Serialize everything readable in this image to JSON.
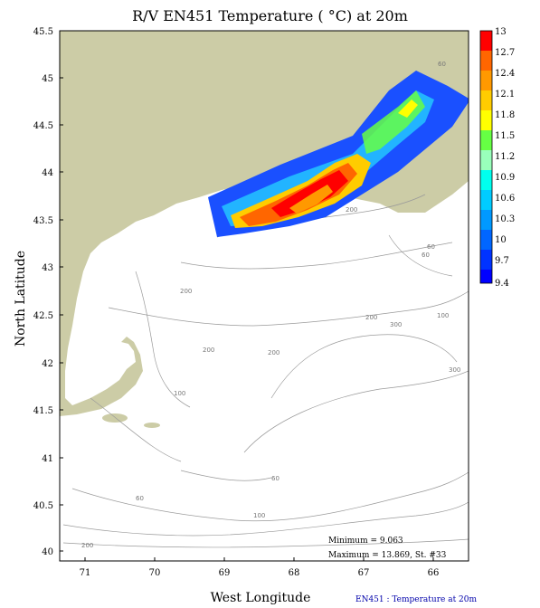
{
  "title": "R/V EN451 Temperature ( °C) at 20m",
  "x_axis": {
    "label": "West Longitude",
    "range": [
      71.5,
      65.5
    ],
    "ticks": [
      "71",
      "70",
      "69",
      "68",
      "67",
      "66"
    ]
  },
  "y_axis": {
    "label": "North Latitude",
    "range": [
      39.85,
      45.5
    ],
    "ticks": [
      "45.5",
      "45",
      "44.5",
      "44",
      "43.5",
      "43",
      "42.5",
      "42",
      "41.5",
      "41",
      "40.5",
      "40"
    ]
  },
  "colorbar": {
    "labels": [
      "13",
      "12.7",
      "12.4",
      "12.1",
      "11.8",
      "11.5",
      "11.2",
      "10.9",
      "10.6",
      "10.3",
      "10",
      "9.7",
      "9.4"
    ],
    "colors": [
      "#ff0000",
      "#ff6600",
      "#ff9900",
      "#ffcc00",
      "#ffff00",
      "#66ff44",
      "#99ffbb",
      "#00ffee",
      "#00ccff",
      "#0099ff",
      "#0066ff",
      "#0033ff",
      "#0000ff"
    ]
  },
  "depth_labels": [
    "60",
    "200",
    "200",
    "200",
    "200",
    "60",
    "100",
    "300",
    "300",
    "100",
    "60",
    "60",
    "100",
    "200",
    "60",
    "200"
  ],
  "stats": {
    "minimum": "Minimum = 9.063",
    "maximum": "Maximum = 13.869, St. #33"
  },
  "footer": "EN451 : Temperature at 20m",
  "colors": {
    "land": "#cccca6",
    "isobath": "#9a9a9a",
    "frame": "#000000"
  }
}
